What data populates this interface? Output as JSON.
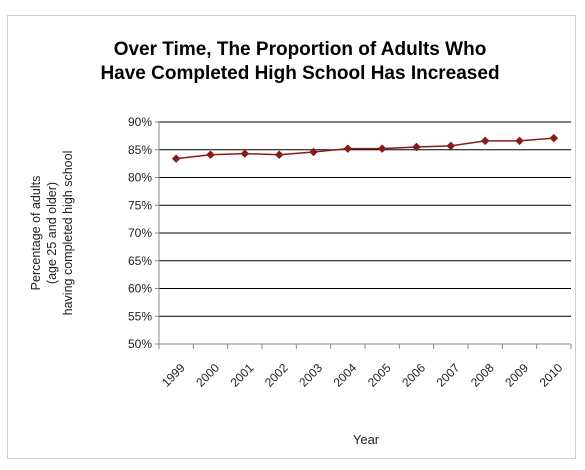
{
  "chart_data": {
    "type": "line",
    "title_lines": [
      "Over Time, The Proportion of Adults Who",
      "Have Completed High School Has Increased"
    ],
    "xlabel": "Year",
    "ylabel_lines": [
      "Percentage of adults",
      "(age 25 and older)",
      "having completed high school"
    ],
    "categories": [
      "1999",
      "2000",
      "2001",
      "2002",
      "2003",
      "2004",
      "2005",
      "2006",
      "2007",
      "2008",
      "2009",
      "2010"
    ],
    "values": [
      83.4,
      84.1,
      84.3,
      84.1,
      84.6,
      85.2,
      85.2,
      85.5,
      85.7,
      86.6,
      86.6,
      87.1
    ],
    "ylim": [
      50,
      90
    ],
    "ytick_labels": [
      "50%",
      "55%",
      "60%",
      "65%",
      "70%",
      "75%",
      "80%",
      "85%",
      "90%"
    ],
    "grid": true,
    "legend": "none",
    "colors": {
      "line": "#8b1a1a",
      "marker": "#8b1a1a",
      "grid": "#000000",
      "axis": "#888888"
    }
  }
}
